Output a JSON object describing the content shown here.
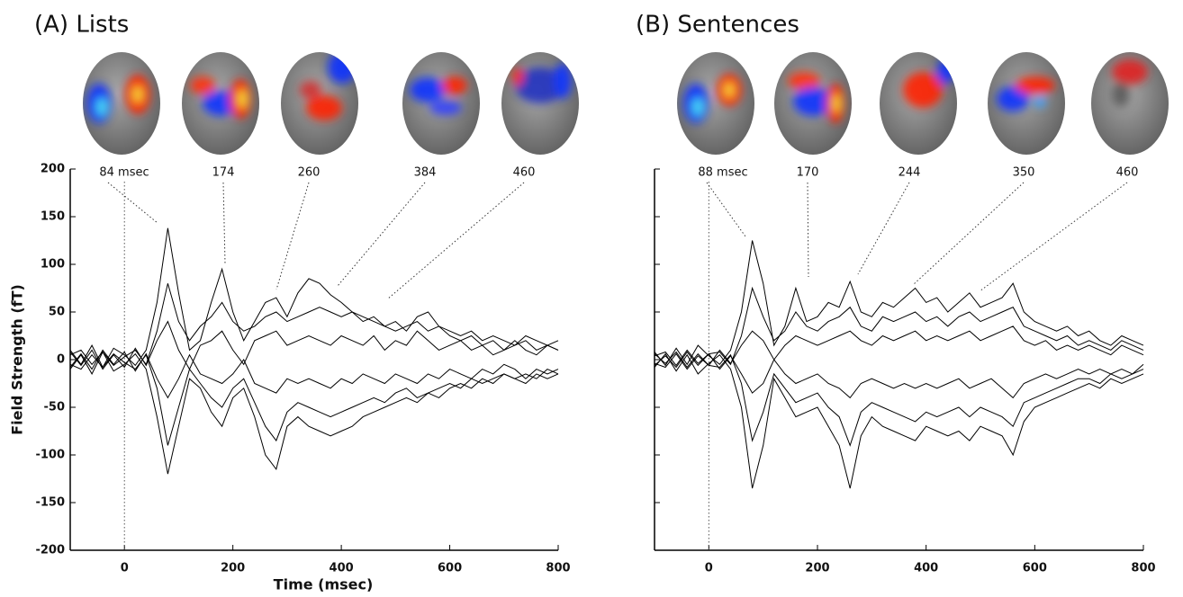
{
  "chart_data": [
    {
      "type": "line",
      "title": "(A) Lists",
      "xlabel": "Time (msec)",
      "ylabel": "Field Strength (fT)",
      "xlim": [
        -100,
        800
      ],
      "ylim": [
        -200,
        200
      ],
      "xticks": [
        0,
        200,
        400,
        600,
        800
      ],
      "yticks": [
        -200,
        -150,
        -100,
        -50,
        0,
        50,
        100,
        150,
        200
      ],
      "ytick_labels": true,
      "annotations": [
        "84 msec",
        "174",
        "260",
        "384",
        "460"
      ],
      "x": [
        -100,
        -80,
        -60,
        -40,
        -20,
        0,
        20,
        40,
        60,
        80,
        100,
        120,
        140,
        160,
        180,
        200,
        220,
        240,
        260,
        280,
        300,
        320,
        340,
        360,
        380,
        400,
        420,
        440,
        460,
        480,
        500,
        520,
        540,
        560,
        580,
        600,
        620,
        640,
        660,
        680,
        700,
        720,
        740,
        760,
        780,
        800
      ],
      "series": [
        {
          "color": "#000000",
          "values": [
            10,
            -5,
            15,
            -8,
            12,
            5,
            -6,
            10,
            60,
            138,
            70,
            10,
            20,
            60,
            95,
            50,
            20,
            40,
            60,
            65,
            45,
            70,
            85,
            80,
            68,
            60,
            50,
            45,
            40,
            35,
            30,
            35,
            40,
            30,
            35,
            25,
            20,
            25,
            15,
            20,
            10,
            15,
            20,
            10,
            15,
            10
          ]
        },
        {
          "color": "#000000",
          "values": [
            -10,
            5,
            -15,
            8,
            -12,
            -5,
            6,
            -10,
            -60,
            -120,
            -70,
            -20,
            -30,
            -55,
            -70,
            -40,
            -30,
            -60,
            -100,
            -115,
            -70,
            -60,
            -70,
            -75,
            -80,
            -75,
            -70,
            -60,
            -55,
            -50,
            -45,
            -40,
            -45,
            -35,
            -40,
            -30,
            -25,
            -30,
            -20,
            -25,
            -15,
            -20,
            -25,
            -15,
            -20,
            -15
          ]
        },
        {
          "color": "#000000",
          "values": [
            5,
            10,
            -5,
            8,
            -6,
            3,
            10,
            -5,
            30,
            80,
            40,
            20,
            35,
            45,
            60,
            40,
            30,
            35,
            45,
            50,
            40,
            45,
            50,
            55,
            50,
            45,
            50,
            40,
            45,
            35,
            40,
            30,
            45,
            50,
            35,
            30,
            25,
            30,
            20,
            25,
            20,
            15,
            25,
            20,
            15,
            20
          ]
        },
        {
          "color": "#000000",
          "values": [
            -5,
            -10,
            5,
            -8,
            6,
            -3,
            -10,
            5,
            -30,
            -90,
            -50,
            -10,
            -25,
            -40,
            -50,
            -30,
            -20,
            -45,
            -70,
            -85,
            -55,
            -45,
            -50,
            -55,
            -60,
            -55,
            -50,
            -45,
            -40,
            -45,
            -35,
            -30,
            -40,
            -35,
            -30,
            -25,
            -30,
            -20,
            -25,
            -20,
            -15,
            -20,
            -15,
            -20,
            -10,
            -15
          ]
        },
        {
          "color": "#000000",
          "values": [
            8,
            -6,
            10,
            -10,
            5,
            -8,
            12,
            -6,
            20,
            40,
            10,
            -10,
            15,
            20,
            30,
            10,
            -5,
            20,
            25,
            30,
            15,
            20,
            25,
            20,
            15,
            25,
            20,
            15,
            25,
            10,
            20,
            15,
            30,
            20,
            10,
            15,
            20,
            10,
            15,
            5,
            10,
            20,
            10,
            5,
            15,
            10
          ]
        },
        {
          "color": "#000000",
          "values": [
            -8,
            6,
            -10,
            10,
            -5,
            8,
            -12,
            6,
            -20,
            -40,
            -20,
            5,
            -15,
            -20,
            -25,
            -15,
            0,
            -25,
            -30,
            -35,
            -20,
            -25,
            -20,
            -25,
            -30,
            -20,
            -25,
            -15,
            -20,
            -25,
            -15,
            -20,
            -25,
            -15,
            -20,
            -10,
            -15,
            -20,
            -10,
            -15,
            -5,
            -10,
            -20,
            -10,
            -15,
            -10
          ]
        }
      ]
    },
    {
      "type": "line",
      "title": "(B) Sentences",
      "xlim": [
        -100,
        800
      ],
      "ylim": [
        -200,
        200
      ],
      "xticks": [
        0,
        200,
        400,
        600,
        800
      ],
      "yticks": [
        -200,
        -150,
        -100,
        -50,
        0,
        50,
        100,
        150,
        200
      ],
      "ytick_labels": false,
      "annotations": [
        "88 msec",
        "170",
        "244",
        "350",
        "460"
      ],
      "x": [
        -100,
        -80,
        -60,
        -40,
        -20,
        0,
        20,
        40,
        60,
        80,
        100,
        120,
        140,
        160,
        180,
        200,
        220,
        240,
        260,
        280,
        300,
        320,
        340,
        360,
        380,
        400,
        420,
        440,
        460,
        480,
        500,
        520,
        540,
        560,
        580,
        600,
        620,
        640,
        660,
        680,
        700,
        720,
        740,
        760,
        780,
        800
      ],
      "series": [
        {
          "color": "#000000",
          "values": [
            8,
            -6,
            12,
            -5,
            15,
            4,
            -5,
            10,
            50,
            125,
            80,
            15,
            35,
            75,
            40,
            45,
            60,
            55,
            82,
            50,
            45,
            60,
            55,
            65,
            75,
            60,
            65,
            50,
            60,
            70,
            55,
            60,
            65,
            80,
            50,
            40,
            35,
            30,
            35,
            25,
            30,
            20,
            15,
            25,
            20,
            15
          ]
        },
        {
          "color": "#000000",
          "values": [
            -8,
            6,
            -12,
            5,
            -15,
            -4,
            5,
            -10,
            -50,
            -135,
            -90,
            -20,
            -40,
            -60,
            -55,
            -50,
            -70,
            -90,
            -135,
            -80,
            -60,
            -70,
            -75,
            -80,
            -85,
            -70,
            -75,
            -80,
            -75,
            -85,
            -70,
            -75,
            -80,
            -100,
            -65,
            -50,
            -45,
            -40,
            -35,
            -30,
            -25,
            -30,
            -20,
            -25,
            -20,
            -15
          ]
        },
        {
          "color": "#000000",
          "values": [
            4,
            8,
            -6,
            10,
            -4,
            6,
            8,
            -5,
            25,
            75,
            45,
            20,
            30,
            50,
            35,
            30,
            40,
            45,
            55,
            35,
            30,
            45,
            40,
            45,
            50,
            40,
            45,
            35,
            45,
            50,
            40,
            45,
            50,
            55,
            35,
            30,
            25,
            20,
            25,
            15,
            20,
            15,
            10,
            20,
            15,
            10
          ]
        },
        {
          "color": "#000000",
          "values": [
            -4,
            -8,
            6,
            -10,
            4,
            -6,
            -8,
            5,
            -25,
            -85,
            -55,
            -15,
            -30,
            -45,
            -40,
            -35,
            -50,
            -60,
            -90,
            -55,
            -45,
            -50,
            -55,
            -60,
            -65,
            -55,
            -60,
            -55,
            -50,
            -60,
            -50,
            -55,
            -60,
            -70,
            -45,
            -40,
            -35,
            -30,
            -25,
            -20,
            -20,
            -25,
            -15,
            -20,
            -15,
            -10
          ]
        },
        {
          "color": "#000000",
          "values": [
            6,
            -4,
            8,
            -8,
            6,
            -6,
            10,
            -4,
            15,
            30,
            20,
            0,
            15,
            25,
            20,
            15,
            20,
            25,
            30,
            20,
            15,
            25,
            20,
            25,
            30,
            20,
            25,
            20,
            25,
            30,
            20,
            25,
            30,
            35,
            20,
            15,
            20,
            10,
            15,
            10,
            15,
            10,
            5,
            15,
            10,
            5
          ]
        },
        {
          "color": "#000000",
          "values": [
            -6,
            4,
            -8,
            8,
            -6,
            6,
            -10,
            4,
            -15,
            -35,
            -25,
            0,
            -15,
            -25,
            -20,
            -15,
            -25,
            -30,
            -40,
            -25,
            -20,
            -25,
            -30,
            -25,
            -30,
            -25,
            -30,
            -25,
            -20,
            -30,
            -25,
            -20,
            -30,
            -40,
            -25,
            -20,
            -15,
            -20,
            -15,
            -10,
            -15,
            -10,
            -15,
            -10,
            -15,
            -5
          ]
        }
      ]
    }
  ]
}
